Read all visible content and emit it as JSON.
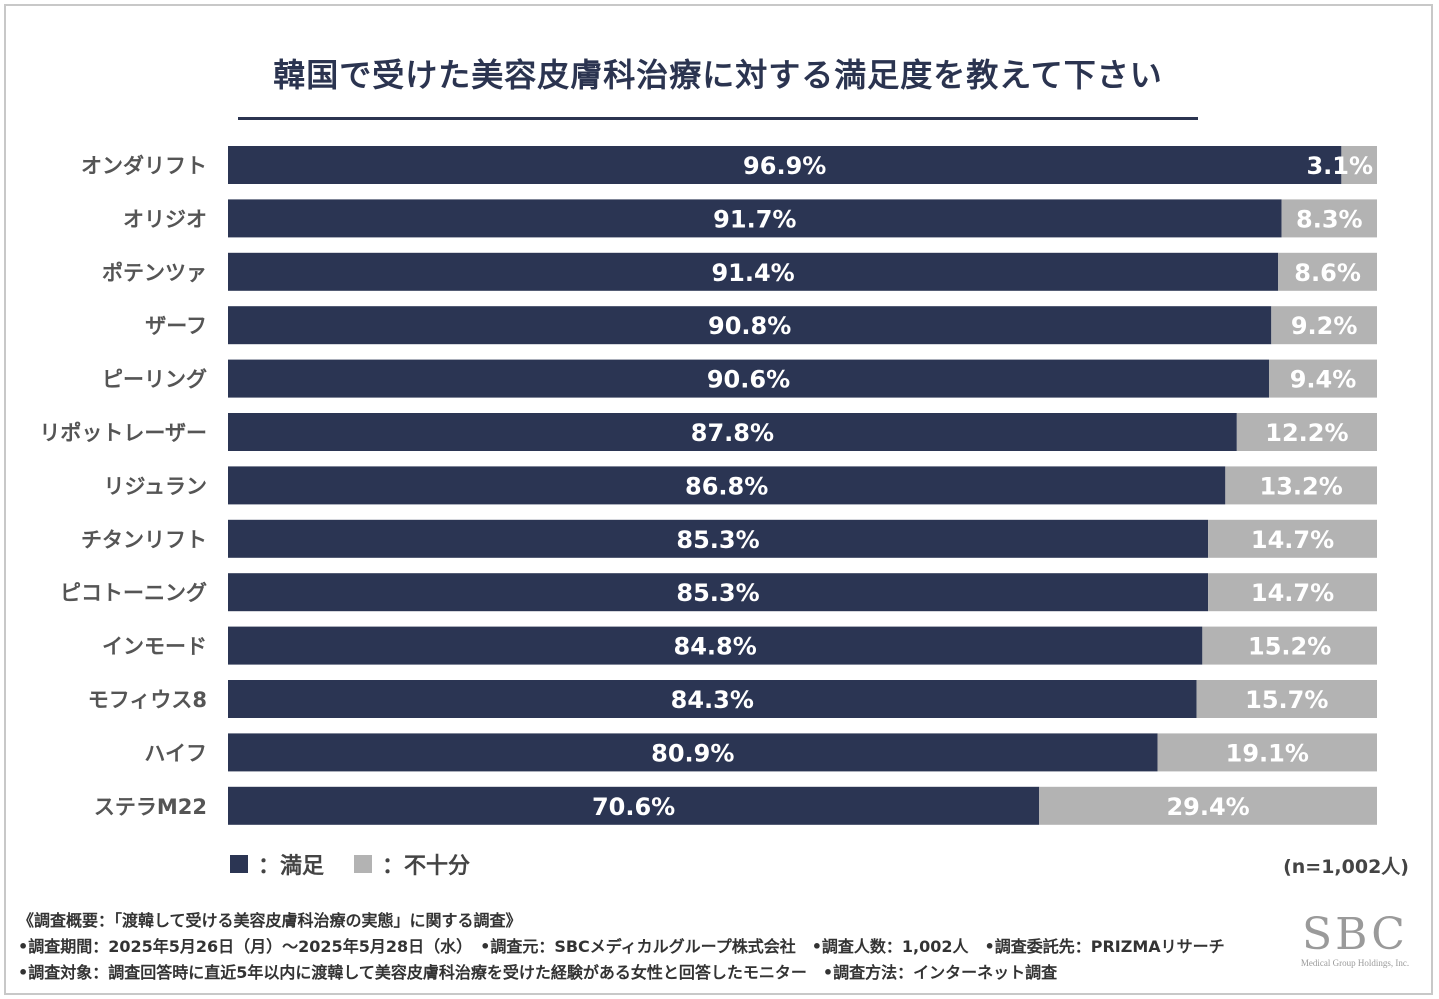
{
  "chart_data": {
    "type": "bar",
    "orientation": "horizontal-stacked-100",
    "title": "韓国で受けた美容皮膚科治療に対する満足度を教えて下さい",
    "categories": [
      "オンダリフト",
      "オリジオ",
      "ポテンツァ",
      "ザーフ",
      "ピーリング",
      "リポットレーザー",
      "リジュラン",
      "チタンリフト",
      "ピコトーニング",
      "インモード",
      "モフィウス8",
      "ハイフ",
      "ステラM22"
    ],
    "series": [
      {
        "name": "満足",
        "color": "#2b3553",
        "values": [
          96.9,
          91.7,
          91.4,
          90.8,
          90.6,
          87.8,
          86.8,
          85.3,
          85.3,
          84.8,
          84.3,
          80.9,
          70.6
        ]
      },
      {
        "name": "不十分",
        "color": "#b3b3b3",
        "values": [
          3.1,
          8.3,
          8.6,
          9.2,
          9.4,
          12.2,
          13.2,
          14.7,
          14.7,
          15.2,
          15.7,
          19.1,
          29.4
        ]
      }
    ],
    "value_suffix": "%",
    "xlim": [
      0,
      100
    ]
  },
  "legend": {
    "satisfied": "：満足",
    "unsatisfied": "：不十分"
  },
  "sample_size": "(n=1,002人)",
  "notes": [
    "《調査概要：「渡韓して受ける美容皮膚科治療の実態」に関する調査》",
    "•調査期間：2025年5月26日（月）～2025年5月28日（水）　•調査元：SBCメディカルグループ株式会社　•調査人数：1,002人　•調査委託先：PRIZMAリサーチ",
    "•調査対象：調査回答時に直近5年以内に渡韓して美容皮膚科治療を受けた経験がある女性と回答したモニター　•調査方法：インターネット調査"
  ],
  "logo": {
    "main": "SBC",
    "sub": "Medical Group Holdings, Inc."
  }
}
